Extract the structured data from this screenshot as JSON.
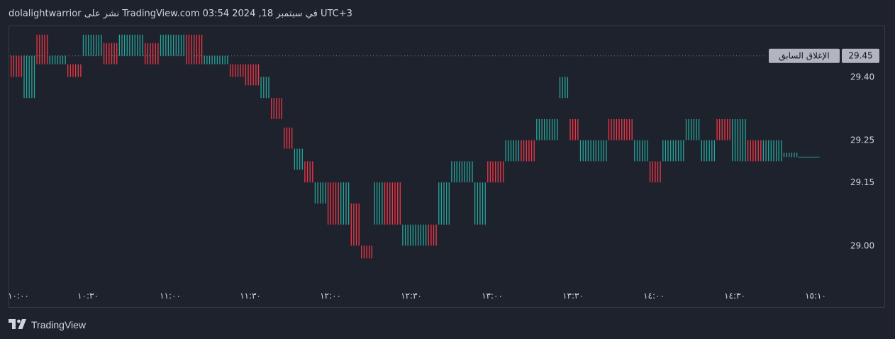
{
  "header": {
    "text": "dolalightwarrior نشر على TradingView.com في سبتمبر 18, 2024 03:54 UTC+3"
  },
  "footer": {
    "brand": "TradingView"
  },
  "colors": {
    "up": "#26a69a",
    "down": "#f23645",
    "bg": "#1e222d",
    "text": "#d1d4dc",
    "border": "#363a45"
  },
  "chart_data": {
    "type": "ohlc",
    "symbol_interval_minutes": 1,
    "price_axis_position": "right",
    "y_ticks": [
      29.45,
      29.4,
      29.25,
      29.15,
      29.0
    ],
    "ylim": [
      28.91,
      29.52
    ],
    "x_ticks": [
      "١٠:٠٠",
      "١٠:٣٠",
      "١١:٠٠",
      "١١:٣٠",
      "١٢:٠٠",
      "١٢:٣٠",
      "١٣:٠٠",
      "١٣:٣٠",
      "١٤:٠٠",
      "١٤:٣٠",
      "١٥:١٠"
    ],
    "previous_close": {
      "label": "الإغلاق السابق",
      "value": "29.45"
    },
    "segments": [
      {
        "from": "10:00",
        "to": "10:05",
        "low": 29.4,
        "high": 29.45,
        "dir": "down"
      },
      {
        "from": "10:05",
        "to": "10:10",
        "low": 29.35,
        "high": 29.45,
        "dir": "up"
      },
      {
        "from": "10:10",
        "to": "10:15",
        "low": 29.43,
        "high": 29.5,
        "dir": "down"
      },
      {
        "from": "10:15",
        "to": "10:22",
        "low": 29.43,
        "high": 29.45,
        "dir": "up"
      },
      {
        "from": "10:22",
        "to": "10:28",
        "low": 29.4,
        "high": 29.43,
        "dir": "down"
      },
      {
        "from": "10:28",
        "to": "10:36",
        "low": 29.45,
        "high": 29.5,
        "dir": "up"
      },
      {
        "from": "10:36",
        "to": "10:42",
        "low": 29.43,
        "high": 29.48,
        "dir": "down"
      },
      {
        "from": "10:42",
        "to": "10:52",
        "low": 29.45,
        "high": 29.5,
        "dir": "up"
      },
      {
        "from": "10:52",
        "to": "10:58",
        "low": 29.43,
        "high": 29.48,
        "dir": "down"
      },
      {
        "from": "10:58",
        "to": "11:08",
        "low": 29.45,
        "high": 29.5,
        "dir": "up"
      },
      {
        "from": "11:08",
        "to": "11:15",
        "low": 29.43,
        "high": 29.5,
        "dir": "down"
      },
      {
        "from": "11:15",
        "to": "11:25",
        "low": 29.43,
        "high": 29.45,
        "dir": "up"
      },
      {
        "from": "11:25",
        "to": "11:31",
        "low": 29.4,
        "high": 29.43,
        "dir": "down"
      },
      {
        "from": "11:31",
        "to": "11:37",
        "low": 29.38,
        "high": 29.43,
        "dir": "down"
      },
      {
        "from": "11:37",
        "to": "11:41",
        "low": 29.35,
        "high": 29.4,
        "dir": "up"
      },
      {
        "from": "11:41",
        "to": "11:46",
        "low": 29.3,
        "high": 29.35,
        "dir": "down"
      },
      {
        "from": "11:46",
        "to": "11:50",
        "low": 29.23,
        "high": 29.28,
        "dir": "down"
      },
      {
        "from": "11:50",
        "to": "11:54",
        "low": 29.18,
        "high": 29.23,
        "dir": "up"
      },
      {
        "from": "11:54",
        "to": "11:58",
        "low": 29.15,
        "high": 29.2,
        "dir": "down"
      },
      {
        "from": "11:58",
        "to": "12:03",
        "low": 29.1,
        "high": 29.15,
        "dir": "up"
      },
      {
        "from": "12:03",
        "to": "12:08",
        "low": 29.05,
        "high": 29.15,
        "dir": "down"
      },
      {
        "from": "12:08",
        "to": "12:12",
        "low": 29.05,
        "high": 29.15,
        "dir": "up"
      },
      {
        "from": "12:12",
        "to": "12:16",
        "low": 29.0,
        "high": 29.1,
        "dir": "down"
      },
      {
        "from": "12:16",
        "to": "12:21",
        "low": 28.97,
        "high": 29.0,
        "dir": "down"
      },
      {
        "from": "12:21",
        "to": "12:25",
        "low": 29.05,
        "high": 29.15,
        "dir": "up"
      },
      {
        "from": "12:25",
        "to": "12:32",
        "low": 29.05,
        "high": 29.15,
        "dir": "down"
      },
      {
        "from": "12:32",
        "to": "12:42",
        "low": 29.0,
        "high": 29.05,
        "dir": "up"
      },
      {
        "from": "12:42",
        "to": "12:46",
        "low": 29.0,
        "high": 29.05,
        "dir": "down"
      },
      {
        "from": "12:46",
        "to": "12:51",
        "low": 29.05,
        "high": 29.15,
        "dir": "up"
      },
      {
        "from": "12:51",
        "to": "13:00",
        "low": 29.15,
        "high": 29.2,
        "dir": "up"
      },
      {
        "from": "13:00",
        "to": "13:05",
        "low": 29.05,
        "high": 29.15,
        "dir": "up"
      },
      {
        "from": "13:05",
        "to": "13:12",
        "low": 29.15,
        "high": 29.2,
        "dir": "down"
      },
      {
        "from": "13:12",
        "to": "13:18",
        "low": 29.2,
        "high": 29.25,
        "dir": "up"
      },
      {
        "from": "13:18",
        "to": "13:24",
        "low": 29.2,
        "high": 29.25,
        "dir": "down"
      },
      {
        "from": "13:24",
        "to": "13:33",
        "low": 29.25,
        "high": 29.3,
        "dir": "up"
      },
      {
        "from": "13:33",
        "to": "13:37",
        "low": 29.35,
        "high": 29.4,
        "dir": "up"
      },
      {
        "from": "13:37",
        "to": "13:41",
        "low": 29.25,
        "high": 29.3,
        "dir": "down"
      },
      {
        "from": "13:41",
        "to": "13:52",
        "low": 29.2,
        "high": 29.25,
        "dir": "up"
      },
      {
        "from": "13:52",
        "to": "14:02",
        "low": 29.25,
        "high": 29.3,
        "dir": "down"
      },
      {
        "from": "14:02",
        "to": "14:08",
        "low": 29.2,
        "high": 29.25,
        "dir": "up"
      },
      {
        "from": "14:08",
        "to": "14:13",
        "low": 29.15,
        "high": 29.2,
        "dir": "down"
      },
      {
        "from": "14:13",
        "to": "14:22",
        "low": 29.2,
        "high": 29.25,
        "dir": "up"
      },
      {
        "from": "14:22",
        "to": "14:28",
        "low": 29.25,
        "high": 29.3,
        "dir": "up"
      },
      {
        "from": "14:28",
        "to": "14:34",
        "low": 29.2,
        "high": 29.25,
        "dir": "up"
      },
      {
        "from": "14:34",
        "to": "14:40",
        "low": 29.25,
        "high": 29.3,
        "dir": "down"
      },
      {
        "from": "14:40",
        "to": "14:46",
        "low": 29.2,
        "high": 29.3,
        "dir": "up"
      },
      {
        "from": "14:46",
        "to": "14:52",
        "low": 29.2,
        "high": 29.25,
        "dir": "down"
      },
      {
        "from": "14:52",
        "to": "15:00",
        "low": 29.2,
        "high": 29.25,
        "dir": "up"
      },
      {
        "from": "15:00",
        "to": "15:06",
        "low": 29.21,
        "high": 29.22,
        "dir": "up"
      }
    ]
  }
}
